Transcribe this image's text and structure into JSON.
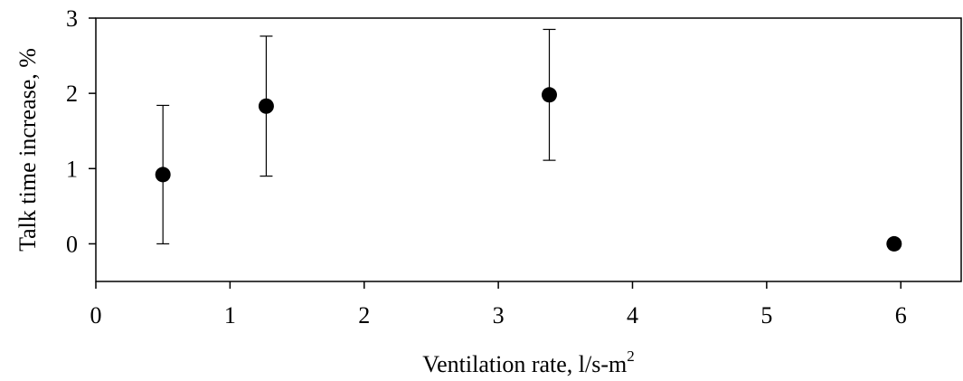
{
  "chart_data": {
    "type": "scatter",
    "xlabel": "Ventilation rate, l/s-m",
    "xlabel_superscript": "2",
    "ylabel": "Talk time increase, %",
    "xlim": [
      0,
      6.45
    ],
    "ylim": [
      -0.5,
      3
    ],
    "x_ticks": [
      "0",
      "1",
      "2",
      "3",
      "4",
      "5",
      "6"
    ],
    "y_ticks": [
      "0",
      "1",
      "2",
      "3"
    ],
    "grid": false,
    "points": [
      {
        "x": 0.5,
        "y": 0.92,
        "err_low": 0.0,
        "err_high": 1.84
      },
      {
        "x": 1.27,
        "y": 1.83,
        "err_low": 0.9,
        "err_high": 2.76
      },
      {
        "x": 3.38,
        "y": 1.98,
        "err_low": 1.11,
        "err_high": 2.85
      },
      {
        "x": 5.95,
        "y": 0.0
      }
    ]
  }
}
